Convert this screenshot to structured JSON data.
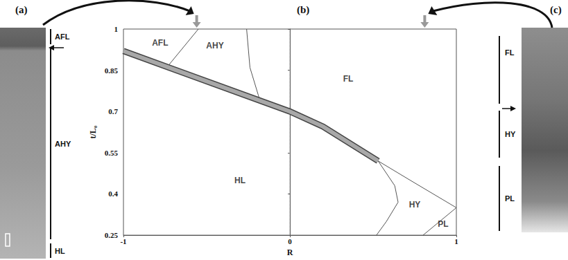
{
  "chart_data": {
    "type": "line",
    "x_label": "R",
    "y_label": "t/L₀",
    "xlim": [
      -1,
      1
    ],
    "xticks": [
      -1,
      0,
      1
    ],
    "ylim": [
      0.25,
      1
    ],
    "yticks": [
      0.25,
      0.4,
      0.55,
      0.7,
      0.85,
      1
    ],
    "grid": false,
    "series": [
      {
        "color": "#a8a8a8",
        "line_style": "thick",
        "x": [
          -1,
          0,
          0.2,
          0.53
        ],
        "values": [
          0.92,
          0.7,
          0.645,
          0.52
        ]
      },
      {
        "color": "#555555",
        "line_style": "solid",
        "x": [
          -0.74,
          -0.55
        ],
        "values": [
          0.86,
          1
        ]
      },
      {
        "color": "#555555",
        "line_style": "solid",
        "x": [
          -0.26,
          -0.24,
          -0.19,
          -0.18
        ],
        "values": [
          1,
          0.86,
          0.76,
          0.74
        ]
      },
      {
        "color": "#555555",
        "line_style": "solid",
        "x": [
          0.53,
          0.75,
          1
        ],
        "values": [
          0.52,
          0.44,
          0.35
        ]
      },
      {
        "color": "#555555",
        "line_style": "solid",
        "x": [
          0.53,
          0.63,
          0.65,
          0.58,
          0.52
        ],
        "values": [
          0.52,
          0.43,
          0.37,
          0.3,
          0.25
        ]
      },
      {
        "color": "#555555",
        "line_style": "solid",
        "x": [
          0.8,
          0.9,
          1
        ],
        "values": [
          0.25,
          0.3,
          0.35
        ]
      },
      {
        "color": "#777777",
        "line_style": "dotted",
        "x": [
          0,
          0
        ],
        "values": [
          0.25,
          1
        ]
      }
    ],
    "annotations": [
      {
        "text": "AFL",
        "x": -0.78,
        "y": 0.95
      },
      {
        "text": "AHY",
        "x": -0.45,
        "y": 0.94
      },
      {
        "text": "FL",
        "x": 0.35,
        "y": 0.82
      },
      {
        "text": "HL",
        "x": -0.3,
        "y": 0.45
      },
      {
        "text": "HY",
        "x": 0.75,
        "y": 0.36
      },
      {
        "text": "PL",
        "x": 0.92,
        "y": 0.29
      }
    ],
    "pointers": {
      "x": [
        -0.56,
        0.81
      ],
      "color": "#999999"
    }
  },
  "panels": [
    {
      "label": "(a)",
      "zones": [
        "AFL",
        "AHY",
        "HL"
      ]
    },
    {
      "label": "(b)"
    },
    {
      "label": "(c)",
      "zones": [
        "FL",
        "HY",
        "PL"
      ]
    }
  ]
}
